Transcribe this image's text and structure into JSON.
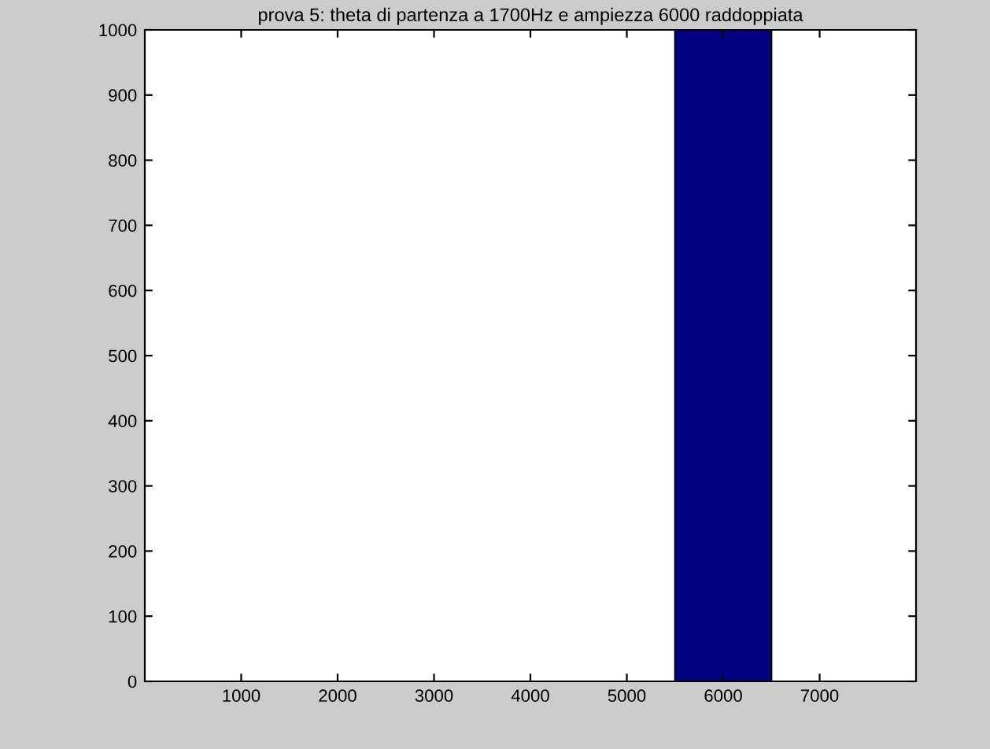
{
  "chart_data": {
    "type": "histogram",
    "title": "prova 5: theta di partenza a 1700Hz e ampiezza 6000 raddoppiata",
    "bins": [
      5500,
      6500
    ],
    "values": [
      1000
    ],
    "color": "#000080",
    "xlim": [
      0,
      8000
    ],
    "xticks": [
      1000,
      2000,
      3000,
      4000,
      5000,
      6000,
      7000
    ],
    "ylim": [
      0,
      1000
    ],
    "yticks": [
      0,
      100,
      200,
      300,
      400,
      500,
      600,
      700,
      800,
      900,
      1000
    ],
    "grid": false
  }
}
